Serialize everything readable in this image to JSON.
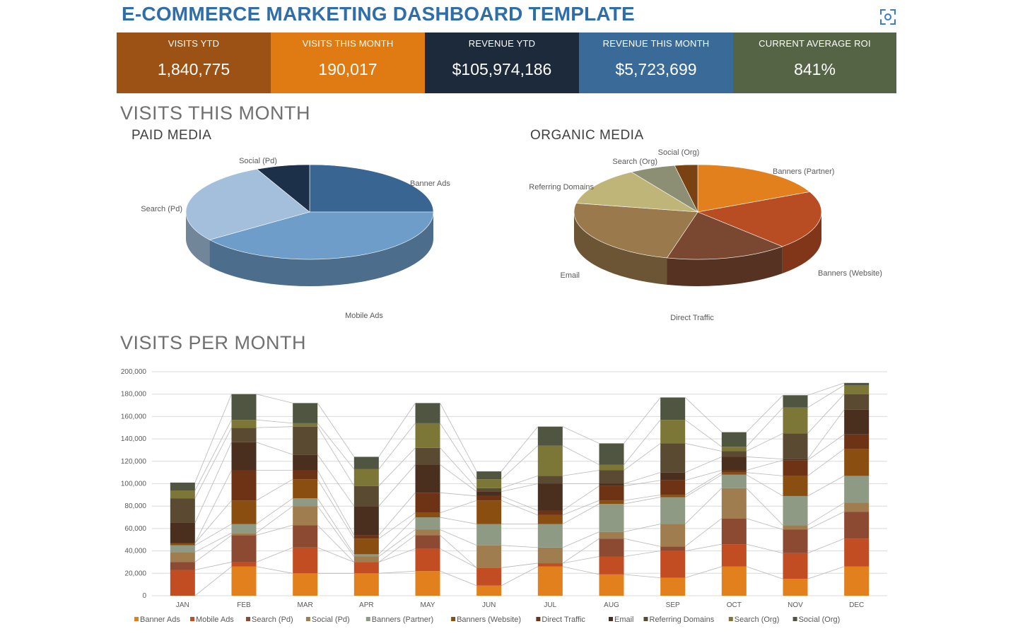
{
  "title": "E-COMMERCE MARKETING DASHBOARD TEMPLATE",
  "kpis": [
    {
      "label": "VISITS YTD",
      "value": "1,840,775",
      "color": "#9c5214"
    },
    {
      "label": "VISITS THIS MONTH",
      "value": "190,017",
      "color": "#e07b13"
    },
    {
      "label": "REVENUE YTD",
      "value": "$105,974,186",
      "color": "#1c2a3b"
    },
    {
      "label": "REVENUE THIS MONTH",
      "value": "$5,723,699",
      "color": "#3a6a98"
    },
    {
      "label": "CURRENT AVERAGE ROI",
      "value": "841%",
      "color": "#556444"
    }
  ],
  "sections": {
    "visits_this_month": "VISITS THIS MONTH",
    "paid_media": "PAID MEDIA",
    "organic_media": "ORGANIC MEDIA",
    "visits_per_month": "VISITS PER MONTH"
  },
  "chart_data": [
    {
      "type": "pie",
      "title": "PAID MEDIA",
      "categories": [
        "Banner Ads",
        "Mobile Ads",
        "Search (Pd)",
        "Social (Pd)"
      ],
      "values": [
        25,
        40,
        28,
        7
      ],
      "colors": [
        "#386592",
        "#6d9dc8",
        "#a3bfdc",
        "#1c3049"
      ]
    },
    {
      "type": "pie",
      "title": "ORGANIC MEDIA",
      "categories": [
        "Banners (Partner)",
        "Banners (Website)",
        "Direct Traffic",
        "Email",
        "Referring Domains",
        "Search (Org)",
        "Social (Org)"
      ],
      "values": [
        18,
        20,
        16,
        24,
        13,
        6,
        3
      ],
      "colors": [
        "#e2801d",
        "#b84c23",
        "#7a4830",
        "#9a7a4c",
        "#c0b578",
        "#8c8f74",
        "#7a4112"
      ]
    },
    {
      "type": "bar",
      "stacked": true,
      "title": "VISITS PER MONTH",
      "categories": [
        "JAN",
        "FEB",
        "MAR",
        "APR",
        "MAY",
        "JUN",
        "JUL",
        "AUG",
        "SEP",
        "OCT",
        "NOV",
        "DEC"
      ],
      "ylim": [
        0,
        200000
      ],
      "yticks": [
        "0",
        "20,000",
        "40,000",
        "60,000",
        "80,000",
        "100,000",
        "120,000",
        "140,000",
        "160,000",
        "180,000",
        "200,000"
      ],
      "grid": true,
      "legend": "bottom",
      "series": [
        {
          "name": "Banner Ads",
          "color": "#e2801d",
          "values": [
            0,
            26000,
            20000,
            20000,
            22000,
            9000,
            26000,
            19000,
            16000,
            26000,
            15000,
            26000
          ]
        },
        {
          "name": "Mobile Ads",
          "color": "#c24d22",
          "values": [
            23000,
            4000,
            23000,
            10000,
            20000,
            16000,
            3000,
            16000,
            24000,
            20000,
            23000,
            25000
          ]
        },
        {
          "name": "Search (Pd)",
          "color": "#8c4a33",
          "values": [
            7000,
            24000,
            20000,
            0,
            12000,
            0,
            0,
            16000,
            4000,
            23000,
            21000,
            24000
          ]
        },
        {
          "name": "Social (Pd)",
          "color": "#a07d4e",
          "values": [
            9000,
            2000,
            17000,
            5000,
            5000,
            20000,
            14000,
            6000,
            20000,
            27000,
            4000,
            8000
          ]
        },
        {
          "name": "Banners (Partner)",
          "color": "#8e9a84",
          "values": [
            6000,
            8000,
            7000,
            2000,
            11000,
            19000,
            21000,
            25000,
            24000,
            12000,
            26000,
            24000
          ]
        },
        {
          "name": "Banners (Website)",
          "color": "#8a4f10",
          "values": [
            2000,
            21000,
            17000,
            14000,
            4000,
            21000,
            8000,
            3000,
            2000,
            2000,
            18000,
            24000
          ]
        },
        {
          "name": "Direct Traffic",
          "color": "#6e3314",
          "values": [
            0,
            27000,
            8000,
            3000,
            18000,
            4000,
            4000,
            13000,
            13000,
            2000,
            14000,
            13000
          ]
        },
        {
          "name": "Email",
          "color": "#4a2f1e",
          "values": [
            18000,
            25000,
            14000,
            26000,
            25000,
            4000,
            24000,
            2000,
            7000,
            12000,
            1000,
            22000
          ]
        },
        {
          "name": "Referring Domains",
          "color": "#5a4a32",
          "values": [
            22000,
            13000,
            25000,
            18000,
            15000,
            3000,
            7000,
            12000,
            26000,
            5000,
            23000,
            14000
          ]
        },
        {
          "name": "Search (Org)",
          "color": "#7c7736",
          "values": [
            7000,
            7000,
            3000,
            15000,
            22000,
            8000,
            27000,
            5000,
            21000,
            4000,
            23000,
            8000
          ]
        },
        {
          "name": "Social (Org)",
          "color": "#4f5541",
          "values": [
            7000,
            23000,
            18000,
            11000,
            18000,
            7000,
            17000,
            19000,
            20000,
            13000,
            11000,
            2000
          ]
        }
      ]
    }
  ]
}
